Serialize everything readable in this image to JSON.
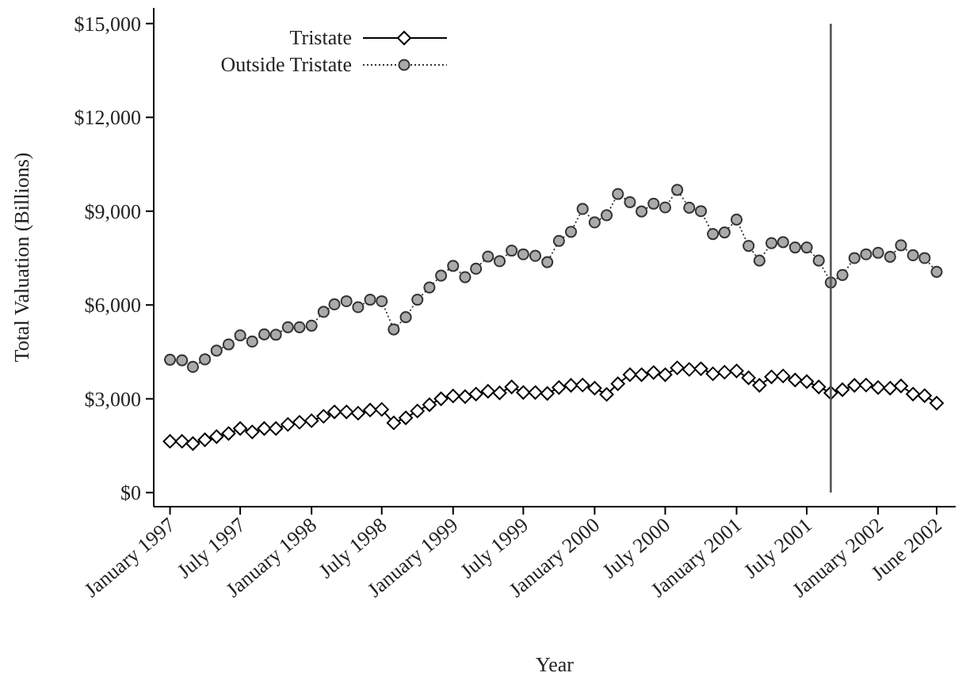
{
  "chart_data": {
    "type": "line",
    "xlabel": "Year",
    "ylabel": "Total Valuation (Billions)",
    "x": [
      "1997-01",
      "1997-02",
      "1997-03",
      "1997-04",
      "1997-05",
      "1997-06",
      "1997-07",
      "1997-08",
      "1997-09",
      "1997-10",
      "1997-11",
      "1997-12",
      "1998-01",
      "1998-02",
      "1998-03",
      "1998-04",
      "1998-05",
      "1998-06",
      "1998-07",
      "1998-08",
      "1998-09",
      "1998-10",
      "1998-11",
      "1998-12",
      "1999-01",
      "1999-02",
      "1999-03",
      "1999-04",
      "1999-05",
      "1999-06",
      "1999-07",
      "1999-08",
      "1999-09",
      "1999-10",
      "1999-11",
      "1999-12",
      "2000-01",
      "2000-02",
      "2000-03",
      "2000-04",
      "2000-05",
      "2000-06",
      "2000-07",
      "2000-08",
      "2000-09",
      "2000-10",
      "2000-11",
      "2000-12",
      "2001-01",
      "2001-02",
      "2001-03",
      "2001-04",
      "2001-05",
      "2001-06",
      "2001-07",
      "2001-08",
      "2001-09",
      "2001-10",
      "2001-11",
      "2001-12",
      "2002-01",
      "2002-02",
      "2002-03",
      "2002-04",
      "2002-05",
      "2002-06"
    ],
    "series": [
      {
        "name": "Tristate",
        "color": "#000000",
        "marker": "diamond",
        "line_style": "solid",
        "values": [
          1640,
          1640,
          1570,
          1690,
          1790,
          1890,
          2050,
          1940,
          2050,
          2050,
          2180,
          2250,
          2300,
          2440,
          2580,
          2580,
          2540,
          2640,
          2660,
          2230,
          2390,
          2610,
          2810,
          3000,
          3090,
          3070,
          3150,
          3240,
          3190,
          3380,
          3200,
          3200,
          3170,
          3360,
          3430,
          3440,
          3340,
          3140,
          3480,
          3770,
          3770,
          3840,
          3770,
          3990,
          3940,
          3960,
          3800,
          3850,
          3890,
          3670,
          3430,
          3700,
          3730,
          3600,
          3550,
          3380,
          3190,
          3290,
          3430,
          3440,
          3360,
          3340,
          3410,
          3150,
          3100,
          2860
        ]
      },
      {
        "name": "Outside Tristate",
        "color": "#333333",
        "marker": "circle",
        "line_style": "dotted",
        "values": [
          4250,
          4230,
          4020,
          4260,
          4540,
          4740,
          5030,
          4830,
          5060,
          5050,
          5290,
          5290,
          5340,
          5780,
          6020,
          6120,
          5930,
          6170,
          6120,
          5220,
          5610,
          6170,
          6560,
          6940,
          7250,
          6890,
          7160,
          7550,
          7400,
          7740,
          7620,
          7570,
          7370,
          8050,
          8340,
          9070,
          8640,
          8870,
          9550,
          9290,
          8990,
          9240,
          9120,
          9680,
          9110,
          9000,
          8270,
          8320,
          8730,
          7890,
          7420,
          7980,
          8010,
          7840,
          7840,
          7420,
          6720,
          6960,
          7500,
          7620,
          7670,
          7540,
          7910,
          7590,
          7500,
          7060
        ]
      }
    ],
    "xlim": [
      "1996-11-20",
      "2002-07-20"
    ],
    "xticks": [
      {
        "value": "1997-01",
        "label": "January 1997"
      },
      {
        "value": "1997-07",
        "label": "July 1997"
      },
      {
        "value": "1998-01",
        "label": "January 1998"
      },
      {
        "value": "1998-07",
        "label": "July 1998"
      },
      {
        "value": "1999-01",
        "label": "January 1999"
      },
      {
        "value": "1999-07",
        "label": "July 1999"
      },
      {
        "value": "2000-01",
        "label": "January 2000"
      },
      {
        "value": "2000-07",
        "label": "July 2000"
      },
      {
        "value": "2001-01",
        "label": "January 2001"
      },
      {
        "value": "2001-07",
        "label": "July 2001"
      },
      {
        "value": "2002-01",
        "label": "January 2002"
      },
      {
        "value": "2002-06",
        "label": "June 2002"
      }
    ],
    "ylim": [
      -450,
      15500
    ],
    "yticks": [
      {
        "value": 0,
        "label": "$0"
      },
      {
        "value": 3000,
        "label": "$3,000"
      },
      {
        "value": 6000,
        "label": "$6,000"
      },
      {
        "value": 9000,
        "label": "$9,000"
      },
      {
        "value": 12000,
        "label": "$12,000"
      },
      {
        "value": 15000,
        "label": "$15,000"
      }
    ],
    "ref_lines": [
      {
        "axis": "x",
        "value": "2001-09",
        "color": "#555555"
      }
    ],
    "grid": false,
    "legend": "top left"
  }
}
